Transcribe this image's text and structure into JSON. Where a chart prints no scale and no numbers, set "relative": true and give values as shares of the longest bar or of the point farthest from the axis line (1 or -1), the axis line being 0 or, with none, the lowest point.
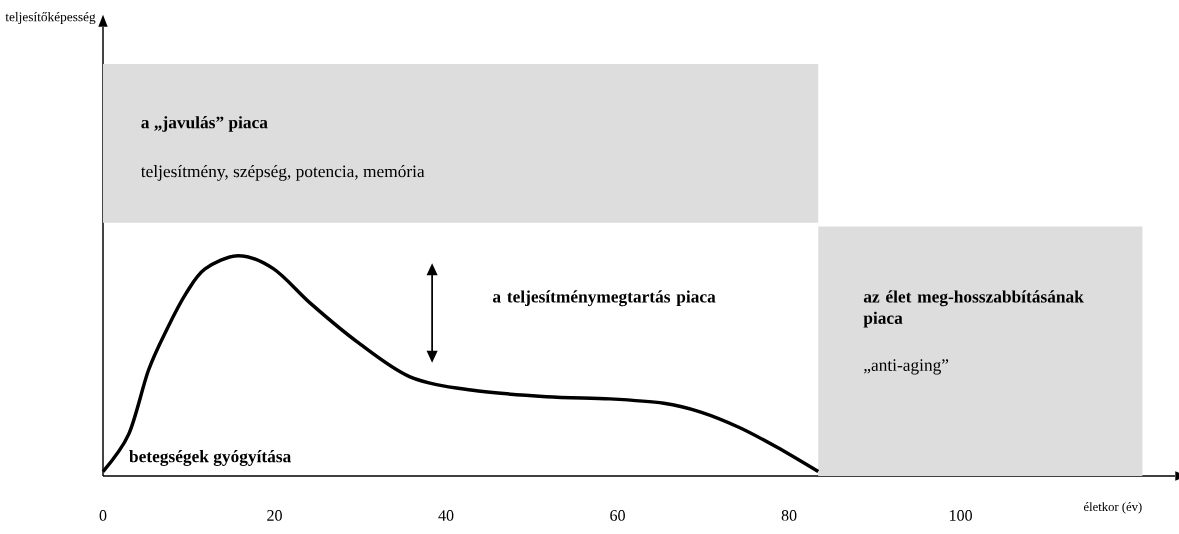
{
  "chart_data": {
    "type": "line",
    "relative": true,
    "xlabel": "életkor (év)",
    "x": [
      0,
      3.0,
      5.3,
      7.5,
      9.7,
      11.9,
      15.8,
      19.9,
      24.3,
      29.6,
      35.8,
      42.9,
      51.7,
      59.1,
      65.4,
      69.7,
      74.2,
      78.6,
      83.4
    ],
    "series": [
      {
        "color": "#000000",
        "values": [
          0.02,
          0.19,
          0.48,
          0.67,
          0.83,
          0.94,
          1.0,
          0.94,
          0.78,
          0.61,
          0.45,
          0.39,
          0.36,
          0.35,
          0.33,
          0.29,
          0.22,
          0.13,
          0.02
        ]
      }
    ],
    "xlim": [
      0,
      125
    ],
    "xticks": [
      0,
      20,
      40,
      60,
      80,
      100
    ],
    "bands": [
      {
        "axis": "y",
        "from": 1.15,
        "to": 1.87,
        "label": "a „javulás” piaca",
        "color": "#dddddd"
      },
      {
        "axis": "x",
        "from": 83.4,
        "to": 121.2,
        "label": "az élet meg-hosszabbításának piaca",
        "color": "#dddddd"
      }
    ],
    "annotations": [
      "teljesítmény, szépség, potencia, memória",
      "„anti-aging”",
      "a teljesítménymegtartás piaca",
      "betegségek gyógyítása",
      "teljesítőképesség"
    ],
    "marker": "none",
    "line_style": "solid"
  }
}
